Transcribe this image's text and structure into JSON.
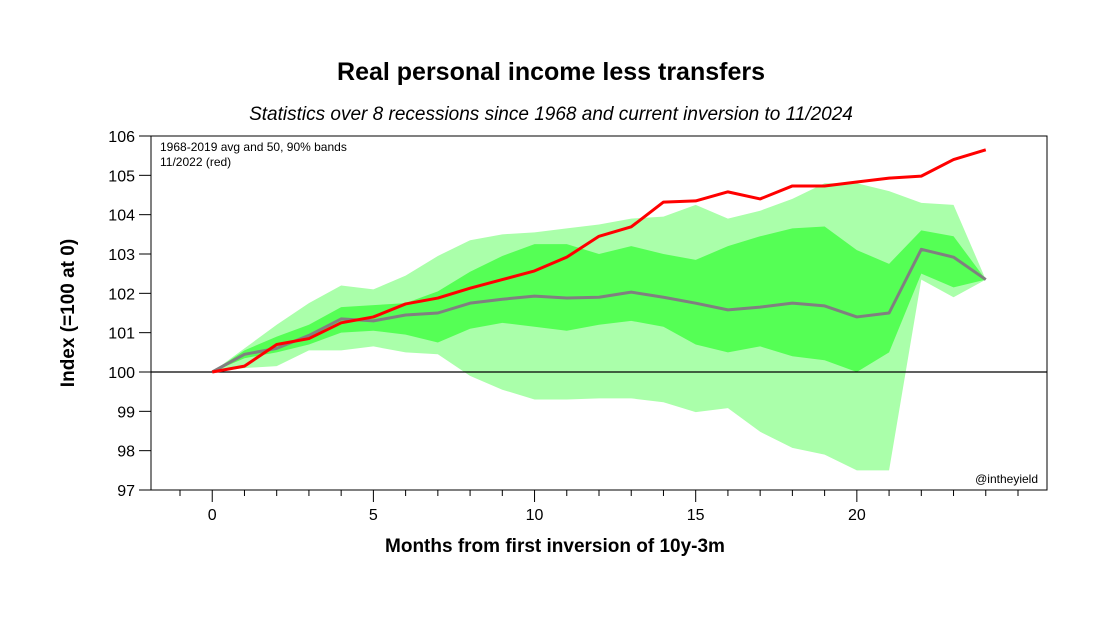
{
  "chart_data": {
    "type": "area",
    "title": "Real personal income less transfers",
    "subtitle": "Statistics over 8 recessions since 1968 and current inversion to 11/2024",
    "xlabel": "Months from first inversion of 10y-3m",
    "ylabel": "Index (=100 at 0)",
    "xlim": [
      -1.9,
      25.9
    ],
    "ylim": [
      97,
      106
    ],
    "xticks": [
      0,
      5,
      10,
      15,
      20
    ],
    "xminor_step": 1,
    "yticks": [
      97,
      98,
      99,
      100,
      101,
      102,
      103,
      104,
      105,
      106
    ],
    "reference_line": 100,
    "grid": false,
    "annotations": [
      "1968-2019 avg and 50, 90% bands",
      "11/2022 (red)"
    ],
    "watermark": "@intheyield",
    "x": [
      0,
      1,
      2,
      3,
      4,
      5,
      6,
      7,
      8,
      9,
      10,
      11,
      12,
      13,
      14,
      15,
      16,
      17,
      18,
      19,
      20,
      21,
      22,
      23,
      24
    ],
    "series": [
      {
        "name": "90% band upper",
        "color": "#aaffaa",
        "values": [
          100,
          100.6,
          101.2,
          101.75,
          102.2,
          102.1,
          102.45,
          102.95,
          103.35,
          103.5,
          103.55,
          103.65,
          103.75,
          103.9,
          103.95,
          104.25,
          103.9,
          104.1,
          104.4,
          104.8,
          104.8,
          104.6,
          104.3,
          104.25,
          102.35
        ]
      },
      {
        "name": "90% band lower",
        "color": "#aaffaa",
        "values": [
          100,
          100.1,
          100.15,
          100.55,
          100.55,
          100.65,
          100.5,
          100.45,
          99.9,
          99.55,
          99.3,
          99.3,
          99.33,
          99.33,
          99.23,
          98.98,
          99.08,
          98.48,
          98.07,
          97.9,
          97.5,
          97.5,
          102.35,
          101.9,
          102.35
        ]
      },
      {
        "name": "50% band upper",
        "color": "#55ff55",
        "values": [
          100,
          100.55,
          100.9,
          101.2,
          101.65,
          101.7,
          101.75,
          102.05,
          102.55,
          102.95,
          103.25,
          103.25,
          103.0,
          103.2,
          103.0,
          102.85,
          103.2,
          103.45,
          103.65,
          103.7,
          103.1,
          102.75,
          103.6,
          103.45,
          102.35
        ]
      },
      {
        "name": "50% band lower",
        "color": "#55ff55",
        "values": [
          100,
          100.35,
          100.5,
          100.7,
          101.0,
          101.05,
          100.95,
          100.75,
          101.1,
          101.25,
          101.15,
          101.05,
          101.2,
          101.3,
          101.15,
          100.7,
          100.5,
          100.65,
          100.4,
          100.3,
          100.0,
          100.5,
          102.5,
          102.15,
          102.35
        ]
      },
      {
        "name": "1968-2019 avg",
        "color": "#808080",
        "values": [
          100,
          100.45,
          100.6,
          100.93,
          101.35,
          101.3,
          101.45,
          101.5,
          101.75,
          101.85,
          101.93,
          101.88,
          101.9,
          102.03,
          101.9,
          101.75,
          101.58,
          101.65,
          101.75,
          101.68,
          101.4,
          101.5,
          103.12,
          102.92,
          102.35
        ]
      },
      {
        "name": "11/2022 (red)",
        "color": "#ff0000",
        "values": [
          100,
          100.15,
          100.7,
          100.85,
          101.25,
          101.4,
          101.73,
          101.88,
          102.13,
          102.35,
          102.57,
          102.92,
          103.45,
          103.69,
          104.32,
          104.35,
          104.58,
          104.4,
          104.73,
          104.73,
          104.83,
          104.93,
          104.98,
          105.4,
          105.65
        ]
      }
    ]
  }
}
